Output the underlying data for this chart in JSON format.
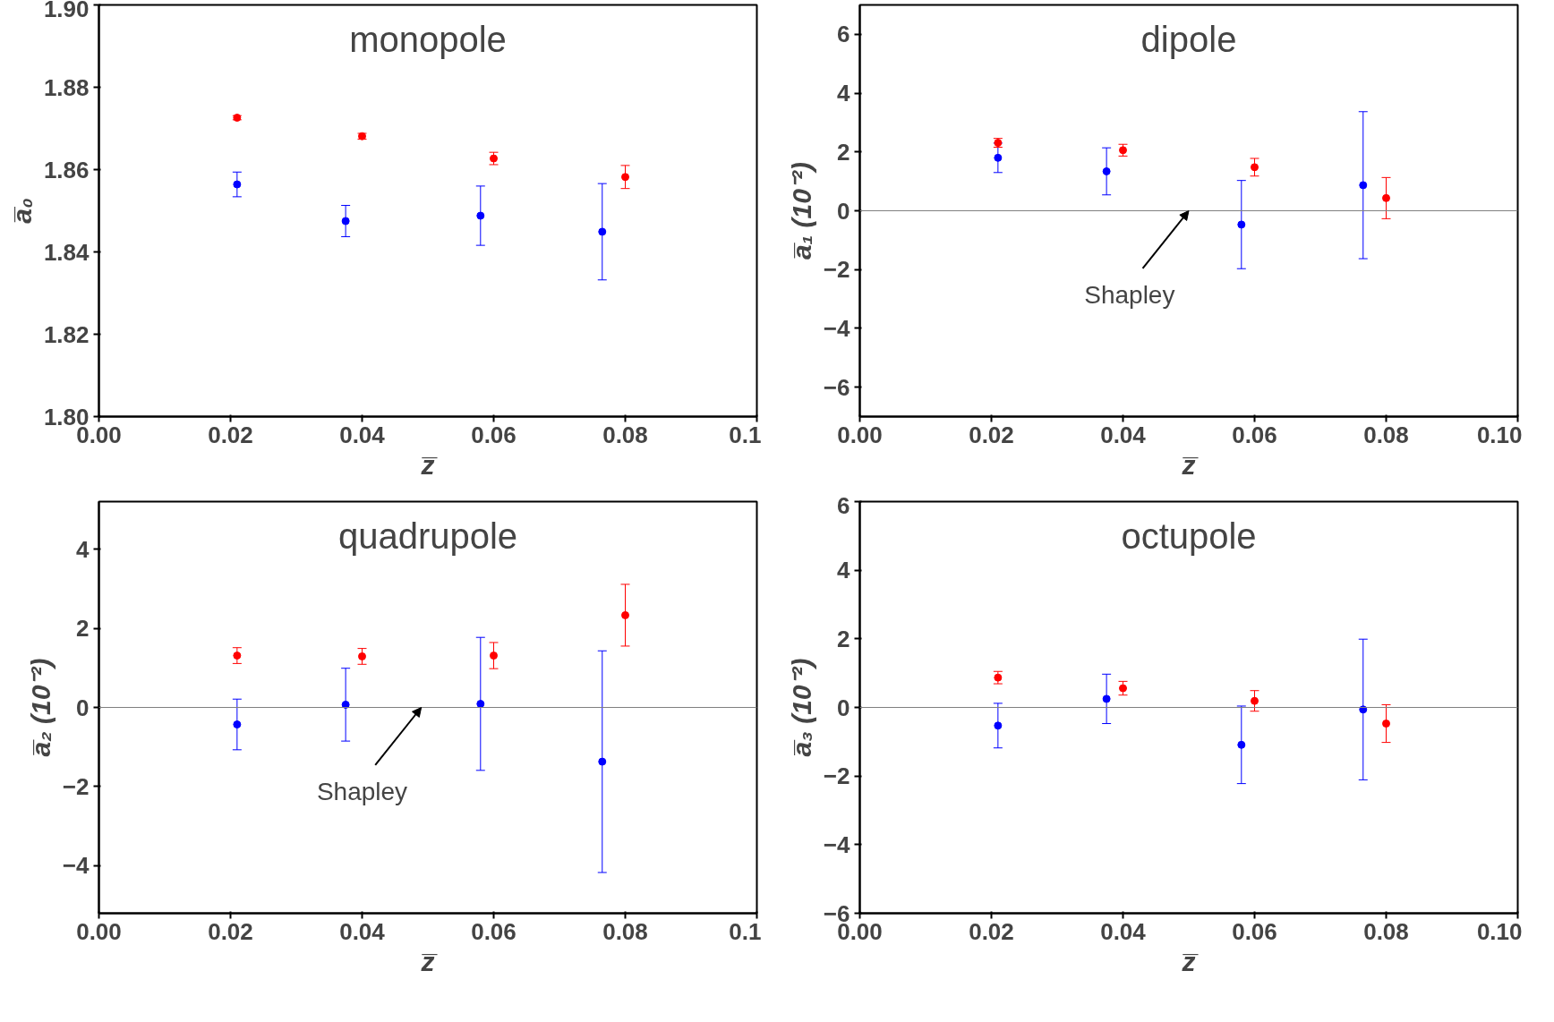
{
  "chart_data": [
    {
      "type": "scatter",
      "title": "monopole",
      "xlabel": "z̅",
      "ylabel": "a̅₀",
      "xlim": [
        0,
        0.1
      ],
      "ylim": [
        1.8,
        1.9
      ],
      "marker": "circle",
      "grid": false,
      "xticks": [
        {
          "value": 0,
          "label": "0.00"
        },
        {
          "value": 0.02,
          "label": "0.02"
        },
        {
          "value": 0.04,
          "label": "0.04"
        },
        {
          "value": 0.06,
          "label": "0.06"
        },
        {
          "value": 0.08,
          "label": "0.08"
        },
        0.1
      ],
      "yticks": [
        {
          "value": 1.8,
          "label": "1.80"
        },
        1.82,
        1.84,
        1.86,
        1.88,
        {
          "value": 1.9,
          "label": "1.90"
        }
      ],
      "series": [
        {
          "color": "#0000ff",
          "x": [
            0.021,
            0.0375,
            0.058,
            0.0765
          ],
          "values": [
            1.8564,
            1.8475,
            1.8488,
            1.8449
          ],
          "errors": [
            0.003,
            0.0038,
            0.0072,
            0.0117
          ]
        },
        {
          "color": "#ff0000",
          "x": [
            0.021,
            0.04,
            0.06,
            0.08
          ],
          "values": [
            1.8726,
            1.8681,
            1.8627,
            1.8582
          ],
          "errors": [
            0.0005,
            0.0007,
            0.0015,
            0.0028
          ]
        }
      ]
    },
    {
      "type": "scatter",
      "title": "dipole",
      "xlabel": "z̅",
      "ylabel": "a̅₁ (10⁻²)",
      "xlim": [
        0,
        0.1
      ],
      "ylim": [
        -7,
        7
      ],
      "marker": "circle",
      "grid": false,
      "xticks": [
        {
          "value": 0,
          "label": "0.00"
        },
        {
          "value": 0.02,
          "label": "0.02"
        },
        {
          "value": 0.04,
          "label": "0.04"
        },
        {
          "value": 0.06,
          "label": "0.06"
        },
        {
          "value": 0.08,
          "label": "0.08"
        },
        {
          "value": 0.1,
          "label": "0.10"
        }
      ],
      "yticks": [
        {
          "value": -6,
          "label": "−6"
        },
        {
          "value": -4,
          "label": "−4"
        },
        {
          "value": -2,
          "label": "−2"
        },
        0,
        2,
        4,
        6
      ],
      "ref_lines": [
        {
          "axis": "y",
          "value": 0,
          "color": "#808080"
        }
      ],
      "annotations": [
        {
          "text": "Shapley",
          "x": 0.05,
          "y": 0
        }
      ],
      "series": [
        {
          "color": "#0000ff",
          "x": [
            0.021,
            0.0375,
            0.058,
            0.0765
          ],
          "values": [
            1.8,
            1.34,
            -0.47,
            0.87
          ],
          "errors": [
            0.5,
            0.8,
            1.5,
            2.5
          ]
        },
        {
          "color": "#ff0000",
          "x": [
            0.021,
            0.04,
            0.06,
            0.08
          ],
          "values": [
            2.31,
            2.06,
            1.48,
            0.43
          ],
          "errors": [
            0.15,
            0.2,
            0.3,
            0.7
          ]
        }
      ]
    },
    {
      "type": "scatter",
      "title": "quadrupole",
      "xlabel": "z̅",
      "ylabel": "a̅₂ (10⁻²)",
      "xlim": [
        0,
        0.1
      ],
      "ylim": [
        -5.2,
        5.2
      ],
      "marker": "circle",
      "grid": false,
      "xticks": [
        {
          "value": 0,
          "label": "0.00"
        },
        {
          "value": 0.02,
          "label": "0.02"
        },
        {
          "value": 0.04,
          "label": "0.04"
        },
        {
          "value": 0.06,
          "label": "0.06"
        },
        {
          "value": 0.08,
          "label": "0.08"
        },
        0.1
      ],
      "yticks": [
        {
          "value": -4,
          "label": "−4"
        },
        {
          "value": -2,
          "label": "−2"
        },
        0,
        2,
        4
      ],
      "ref_lines": [
        {
          "axis": "y",
          "value": 0,
          "color": "#808080"
        }
      ],
      "annotations": [
        {
          "text": "Shapley",
          "x": 0.049,
          "y": 0
        }
      ],
      "series": [
        {
          "color": "#0000ff",
          "x": [
            0.021,
            0.0375,
            0.058,
            0.0765
          ],
          "values": [
            -0.43,
            0.07,
            0.09,
            -1.37
          ],
          "errors": [
            0.64,
            0.92,
            1.68,
            2.8
          ]
        },
        {
          "color": "#ff0000",
          "x": [
            0.021,
            0.04,
            0.06,
            0.08
          ],
          "values": [
            1.31,
            1.29,
            1.31,
            2.33
          ],
          "errors": [
            0.2,
            0.2,
            0.33,
            0.78
          ]
        }
      ]
    },
    {
      "type": "scatter",
      "title": "octupole",
      "xlabel": "z̅",
      "ylabel": "a̅₃ (10⁻²)",
      "xlim": [
        0,
        0.1
      ],
      "ylim": [
        -6,
        6
      ],
      "marker": "circle",
      "grid": false,
      "xticks": [
        {
          "value": 0,
          "label": "0.00"
        },
        {
          "value": 0.02,
          "label": "0.02"
        },
        {
          "value": 0.04,
          "label": "0.04"
        },
        {
          "value": 0.06,
          "label": "0.06"
        },
        {
          "value": 0.08,
          "label": "0.08"
        },
        {
          "value": 0.1,
          "label": "0.10"
        }
      ],
      "yticks": [
        {
          "value": -6,
          "label": "−6"
        },
        {
          "value": -4,
          "label": "−4"
        },
        {
          "value": -2,
          "label": "−2"
        },
        0,
        2,
        4,
        6
      ],
      "ref_lines": [
        {
          "axis": "y",
          "value": 0,
          "color": "#808080"
        }
      ],
      "series": [
        {
          "color": "#0000ff",
          "x": [
            0.021,
            0.0375,
            0.058,
            0.0765
          ],
          "values": [
            -0.53,
            0.25,
            -1.09,
            -0.06
          ],
          "errors": [
            0.65,
            0.72,
            1.13,
            2.05
          ]
        },
        {
          "color": "#ff0000",
          "x": [
            0.021,
            0.04,
            0.06,
            0.08
          ],
          "values": [
            0.87,
            0.56,
            0.19,
            -0.47
          ],
          "errors": [
            0.18,
            0.2,
            0.3,
            0.55
          ]
        }
      ]
    }
  ]
}
